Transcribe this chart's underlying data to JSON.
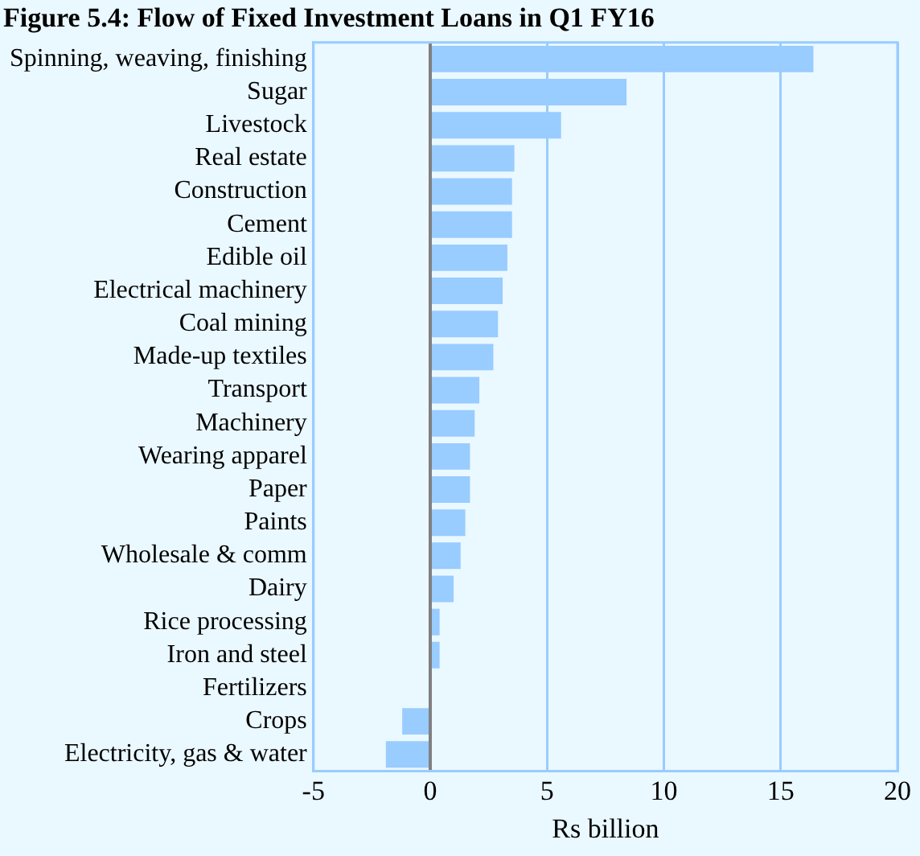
{
  "chart_data": {
    "type": "bar",
    "orientation": "horizontal",
    "title": "Figure 5.4: Flow of Fixed Investment Loans in Q1 FY16",
    "xlabel": "Rs billion",
    "categories": [
      "Spinning, weaving, finishing",
      "Sugar",
      "Livestock",
      "Real estate",
      "Construction",
      "Cement",
      "Edible oil",
      "Electrical machinery",
      "Coal mining",
      "Made-up textiles",
      "Transport",
      "Machinery",
      "Wearing apparel",
      "Paper",
      "Paints",
      "Wholesale & comm",
      "Dairy",
      "Rice processing",
      "Iron and steel",
      "Fertilizers",
      "Crops",
      "Electricity, gas & water"
    ],
    "values": [
      16.4,
      8.4,
      5.6,
      3.6,
      3.5,
      3.5,
      3.3,
      3.1,
      2.9,
      2.7,
      2.1,
      1.9,
      1.7,
      1.7,
      1.5,
      1.3,
      1.0,
      0.4,
      0.4,
      0,
      -1.2,
      -1.9
    ],
    "color": "#99ccff",
    "xlim": [
      -5,
      20
    ],
    "xticks": [
      -5,
      0,
      5,
      10,
      15,
      20
    ],
    "grid": "x",
    "legend": false
  }
}
